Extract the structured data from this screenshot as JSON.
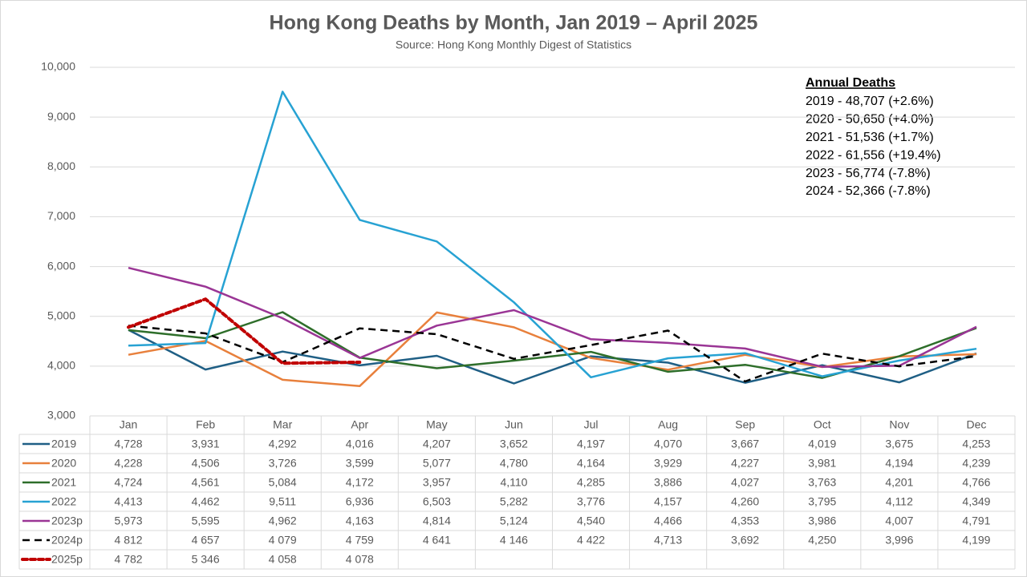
{
  "chart_data": {
    "type": "line",
    "title": "Hong Kong Deaths by Month, Jan 2019 – April 2025",
    "subtitle": "Source: Hong Kong Monthly Digest of Statistics",
    "categories": [
      "Jan",
      "Feb",
      "Mar",
      "Apr",
      "May",
      "Jun",
      "Jul",
      "Aug",
      "Sep",
      "Oct",
      "Nov",
      "Dec"
    ],
    "ylim": [
      3000,
      10000
    ],
    "yticks": [
      {
        "value": 3000,
        "label": "3,000"
      },
      {
        "value": 4000,
        "label": "4,000"
      },
      {
        "value": 5000,
        "label": "5,000"
      },
      {
        "value": 6000,
        "label": "6,000"
      },
      {
        "value": 7000,
        "label": "7,000"
      },
      {
        "value": 8000,
        "label": "8,000"
      },
      {
        "value": 9000,
        "label": "9,000"
      },
      {
        "value": 10000,
        "label": "10,000"
      }
    ],
    "grid": true,
    "series": [
      {
        "name": "2019",
        "color": "#1f5f85",
        "dash": "solid",
        "values": [
          4728,
          3931,
          4292,
          4016,
          4207,
          3652,
          4197,
          4070,
          3667,
          4019,
          3675,
          4253
        ],
        "value_labels": [
          "4,728",
          "3,931",
          "4,292",
          "4,016",
          "4,207",
          "3,652",
          "4,197",
          "4,070",
          "3,667",
          "4,019",
          "3,675",
          "4,253"
        ]
      },
      {
        "name": "2020",
        "color": "#e8803c",
        "dash": "solid",
        "values": [
          4228,
          4506,
          3726,
          3599,
          5077,
          4780,
          4164,
          3929,
          4227,
          3981,
          4194,
          4239
        ],
        "value_labels": [
          "4,228",
          "4,506",
          "3,726",
          "3,599",
          "5,077",
          "4,780",
          "4,164",
          "3,929",
          "4,227",
          "3,981",
          "4,194",
          "4,239"
        ]
      },
      {
        "name": "2021",
        "color": "#2e6e2a",
        "dash": "solid",
        "values": [
          4724,
          4561,
          5084,
          4172,
          3957,
          4110,
          4285,
          3886,
          4027,
          3763,
          4201,
          4766
        ],
        "value_labels": [
          "4,724",
          "4,561",
          "5,084",
          "4,172",
          "3,957",
          "4,110",
          "4,285",
          "3,886",
          "4,027",
          "3,763",
          "4,201",
          "4,766"
        ]
      },
      {
        "name": "2022",
        "color": "#27a2d3",
        "dash": "solid",
        "values": [
          4413,
          4462,
          9511,
          6936,
          6503,
          5282,
          3776,
          4157,
          4260,
          3795,
          4112,
          4349
        ],
        "value_labels": [
          "4,413",
          "4,462",
          "9,511",
          "6,936",
          "6,503",
          "5,282",
          "3,776",
          "4,157",
          "4,260",
          "3,795",
          "4,112",
          "4,349"
        ]
      },
      {
        "name": "2023p",
        "color": "#9a3595",
        "dash": "solid",
        "values": [
          5973,
          5595,
          4962,
          4163,
          4814,
          5124,
          4540,
          4466,
          4353,
          3986,
          4007,
          4791
        ],
        "value_labels": [
          "5,973",
          "5,595",
          "4,962",
          "4,163",
          "4,814",
          "5,124",
          "4,540",
          "4,466",
          "4,353",
          "3,986",
          "4,007",
          "4,791"
        ]
      },
      {
        "name": "2024p",
        "color": "#000000",
        "dash": "dashed",
        "values": [
          4812,
          4657,
          4079,
          4759,
          4641,
          4146,
          4422,
          4713,
          3692,
          4250,
          3996,
          4199
        ],
        "value_labels": [
          "4 812",
          "4 657",
          "4 079",
          "4 759",
          "4 641",
          "4 146",
          "4 422",
          "4,713",
          "3,692",
          "4,250",
          "3,996",
          "4,199"
        ]
      },
      {
        "name": "2025p",
        "color": "#c00000",
        "dash": "dotted",
        "values": [
          4782,
          5346,
          4058,
          4078,
          null,
          null,
          null,
          null,
          null,
          null,
          null,
          null
        ],
        "value_labels": [
          "4 782",
          "5 346",
          "4 058",
          "4 078",
          null,
          null,
          null,
          null,
          null,
          null,
          null,
          null
        ]
      }
    ],
    "annotation": {
      "title": "Annual Deaths",
      "lines": [
        "2019 - 48,707 (+2.6%)",
        "2020 - 50,650 (+4.0%)",
        "2021 - 51,536 (+1.7%)",
        "2022 - 61,556 (+19.4%)",
        "2023 - 56,774 (-7.8%)",
        "2024 - 52,366 (-7.8%)"
      ]
    }
  }
}
